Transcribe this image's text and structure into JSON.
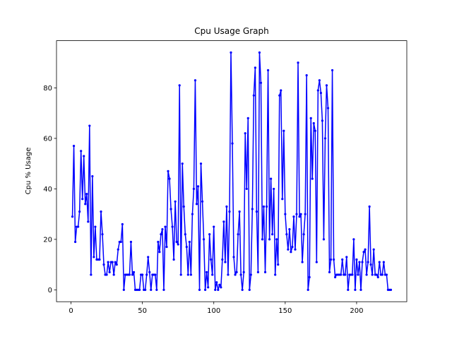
{
  "chart_data": {
    "type": "line",
    "title": "Cpu Usage Graph",
    "y_label": "Cpu % Usage",
    "color": "#0000ff",
    "x": [
      1,
      2,
      3,
      4,
      5,
      6,
      7,
      8,
      9,
      10,
      11,
      12,
      13,
      14,
      15,
      16,
      17,
      18,
      19,
      20,
      21,
      22,
      23,
      24,
      25,
      26,
      27,
      28,
      29,
      30,
      31,
      32,
      33,
      34,
      35,
      36,
      37,
      38,
      39,
      40,
      41,
      42,
      43,
      44,
      45,
      46,
      47,
      48,
      49,
      50,
      51,
      52,
      53,
      54,
      55,
      56,
      57,
      58,
      59,
      60,
      61,
      62,
      63,
      64,
      65,
      66,
      67,
      68,
      69,
      70,
      71,
      72,
      73,
      74,
      75,
      76,
      77,
      78,
      79,
      80,
      81,
      82,
      83,
      84,
      85,
      86,
      87,
      88,
      89,
      90,
      91,
      92,
      93,
      94,
      95,
      96,
      97,
      98,
      99,
      100,
      101,
      102,
      103,
      104,
      105,
      106,
      107,
      108,
      109,
      110,
      111,
      112,
      113,
      114,
      115,
      116,
      117,
      118,
      119,
      120,
      121,
      122,
      123,
      124,
      125,
      126,
      127,
      128,
      129,
      130,
      131,
      132,
      133,
      134,
      135,
      136,
      137,
      138,
      139,
      140,
      141,
      142,
      143,
      144,
      145,
      146,
      147,
      148,
      149,
      150,
      151,
      152,
      153,
      154,
      155,
      156,
      157,
      158,
      159,
      160,
      161,
      162,
      163,
      164,
      165,
      166,
      167,
      168,
      169,
      170,
      171,
      172,
      173,
      174,
      175,
      176,
      177,
      178,
      179,
      180,
      181,
      182,
      183,
      184,
      185,
      186,
      187,
      188,
      189,
      190,
      191,
      192,
      193,
      194,
      195,
      196,
      197,
      198,
      199,
      200,
      201,
      202,
      203,
      204,
      205,
      206,
      207,
      208,
      209,
      210,
      211,
      212,
      213,
      214,
      215,
      216,
      217,
      218,
      219,
      220,
      221,
      222,
      223,
      224
    ],
    "values": [
      29,
      57,
      19,
      25,
      25,
      31,
      55,
      36,
      53,
      34,
      38,
      27,
      65,
      6,
      45,
      13,
      25,
      12,
      12,
      12,
      31,
      22,
      10,
      6,
      6,
      11,
      7,
      11,
      11,
      6,
      11,
      10,
      16,
      19,
      19,
      26,
      0,
      6,
      6,
      6,
      6,
      19,
      6,
      7,
      0,
      0,
      0,
      0,
      6,
      6,
      0,
      0,
      6,
      13,
      7,
      0,
      6,
      6,
      6,
      0,
      19,
      15,
      22,
      24,
      0,
      25,
      17,
      47,
      44,
      32,
      25,
      12,
      35,
      19,
      18,
      81,
      6,
      50,
      33,
      22,
      17,
      6,
      19,
      6,
      30,
      40,
      83,
      34,
      41,
      0,
      50,
      35,
      20,
      0,
      7,
      1,
      22,
      12,
      6,
      25,
      0,
      3,
      0,
      2,
      1,
      12,
      27,
      11,
      33,
      6,
      31,
      94,
      58,
      13,
      6,
      7,
      22,
      31,
      6,
      0,
      7,
      62,
      40,
      68,
      0,
      6,
      32,
      77,
      88,
      31,
      7,
      94,
      82,
      20,
      33,
      7,
      33,
      87,
      20,
      44,
      22,
      40,
      6,
      20,
      10,
      77,
      79,
      36,
      63,
      30,
      22,
      16,
      24,
      15,
      17,
      29,
      16,
      30,
      90,
      29,
      30,
      11,
      22,
      30,
      85,
      0,
      5,
      68,
      44,
      66,
      63,
      11,
      79,
      83,
      78,
      67,
      20,
      60,
      81,
      72,
      7,
      12,
      87,
      12,
      5,
      6,
      6,
      6,
      6,
      12,
      6,
      6,
      13,
      0,
      6,
      6,
      6,
      20,
      0,
      12,
      6,
      11,
      0,
      11,
      15,
      16,
      6,
      11,
      33,
      10,
      6,
      16,
      6,
      6,
      5,
      11,
      6,
      6,
      11,
      6,
      6,
      0,
      0,
      0
    ],
    "xlim": [
      -10.15,
      235.15
    ],
    "ylim": [
      -4.7,
      98.7
    ],
    "xticks": [
      0,
      50,
      100,
      150,
      200
    ],
    "yticks": [
      0,
      20,
      40,
      60,
      80
    ]
  }
}
